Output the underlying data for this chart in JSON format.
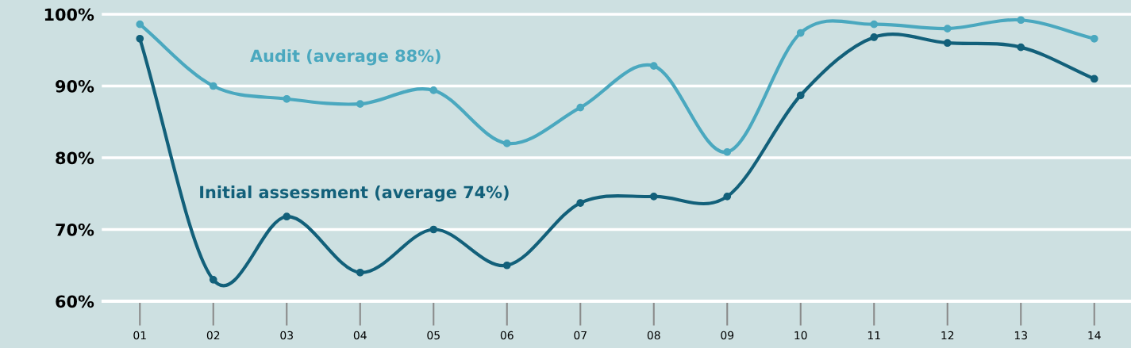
{
  "chart_data": {
    "type": "line",
    "categories": [
      "01",
      "02",
      "03",
      "04",
      "05",
      "06",
      "07",
      "08",
      "09",
      "10",
      "11",
      "12",
      "13",
      "14"
    ],
    "series": [
      {
        "name": "Audit (average 88%)",
        "color": "#4aa8bf",
        "values": [
          98.6,
          90.0,
          88.2,
          87.5,
          89.4,
          82.0,
          87.0,
          92.8,
          80.8,
          97.4,
          98.6,
          98.0,
          99.2,
          96.6
        ]
      },
      {
        "name": "Initial assessment (average 74%)",
        "color": "#12607a",
        "values": [
          96.6,
          63.0,
          71.8,
          64.0,
          70.0,
          65.0,
          73.7,
          74.6,
          74.6,
          88.7,
          96.8,
          96.0,
          95.4,
          91.0
        ]
      }
    ],
    "ylim": [
      60,
      100
    ],
    "yticks": [
      {
        "value": 60,
        "label": "60%"
      },
      {
        "value": 70,
        "label": "70%"
      },
      {
        "value": 80,
        "label": "80%"
      },
      {
        "value": 90,
        "label": "90%"
      },
      {
        "value": 100,
        "label": "100%"
      }
    ],
    "grid": "y",
    "marker": "circle",
    "line_style": "solid",
    "legend": false
  }
}
